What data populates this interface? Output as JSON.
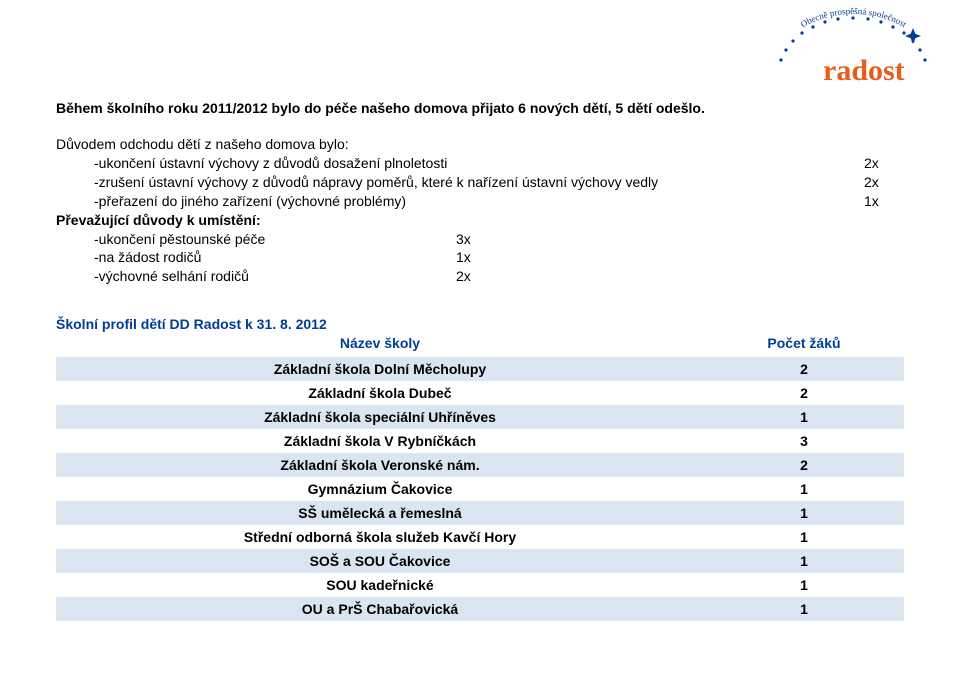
{
  "logo": {
    "arc_text": "Obecně prospěšná společnost",
    "arc_color": "#003d99",
    "word": "radost",
    "word_color": "#e85d1a",
    "star_color": "#003d99"
  },
  "intro": "Během školního roku 2011/2012 bylo do péče našeho domova přijato 6 nových dětí, 5 dětí odešlo.",
  "departure": {
    "lead_in": "Důvodem odchodu dětí z našeho domova bylo:",
    "rows": [
      {
        "label": "-ukončení ústavní výchovy z důvodů dosažení plnoletosti",
        "value": "2x"
      },
      {
        "label": "-zrušení ústavní výchovy z důvodů nápravy poměrů, které k nařízení ústavní výchovy vedly",
        "value": "2x"
      },
      {
        "label": "-přeřazení do jiného zařízení (výchovné problémy)",
        "value": "1x"
      }
    ]
  },
  "placement": {
    "heading": "Převažující důvody k umístění:",
    "rows": [
      {
        "label": "-ukončení pěstounské péče",
        "value": "3x"
      },
      {
        "label": "-na žádost rodičů",
        "value": "1x"
      },
      {
        "label": "-výchovné selhání rodičů",
        "value": "2x"
      }
    ]
  },
  "schools": {
    "title": "Školní profil dětí DD Radost k 31. 8. 2012",
    "col_name": "Název školy",
    "col_count": "Počet žáků",
    "rows": [
      {
        "name": "Základní škola Dolní Měcholupy",
        "count": "2",
        "shade": true
      },
      {
        "name": "Základní škola Dubeč",
        "count": "2",
        "shade": false
      },
      {
        "name": "Základní škola speciální Uhříněves",
        "count": "1",
        "shade": true
      },
      {
        "name": "Základní škola V Rybníčkách",
        "count": "3",
        "shade": false
      },
      {
        "name": "Základní škola Veronské nám.",
        "count": "2",
        "shade": true
      },
      {
        "name": "Gymnázium Čakovice",
        "count": "1",
        "shade": false
      },
      {
        "name": "SŠ umělecká a řemeslná",
        "count": "1",
        "shade": true
      },
      {
        "name": "Střední odborná škola služeb Kavčí Hory",
        "count": "1",
        "shade": false
      },
      {
        "name": "SOŠ a SOU Čakovice",
        "count": "1",
        "shade": true
      },
      {
        "name": "SOU kadeřnické",
        "count": "1",
        "shade": false
      },
      {
        "name": "OU a PrŠ Chabařovická",
        "count": "1",
        "shade": true
      }
    ]
  }
}
